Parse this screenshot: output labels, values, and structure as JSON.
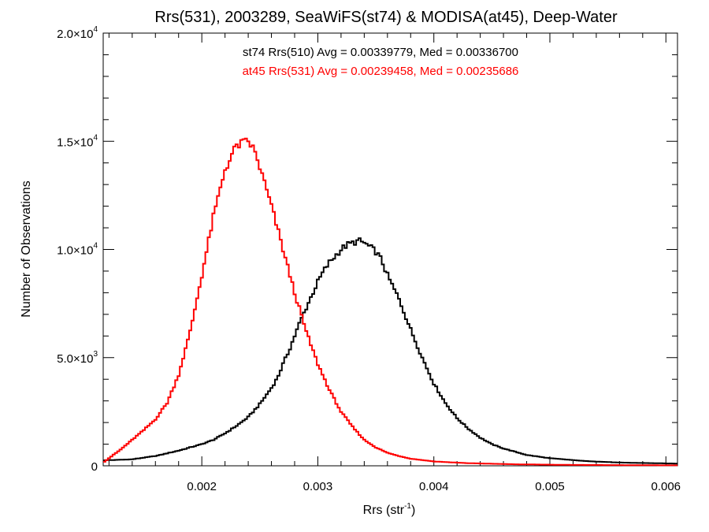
{
  "chart_data": {
    "type": "line",
    "title": "Rrs(531), 2003289, SeaWiFS(st74) & MODISA(at45), Deep-Water",
    "xlabel": "Rrs (str",
    "xlabel_sup": "-1",
    "xlabel_end": ")",
    "ylabel": "Number of Observations",
    "xlim": [
      0.00115,
      0.0061
    ],
    "ylim": [
      0,
      20000
    ],
    "x_ticks": [
      {
        "value": 0.002,
        "label": "0.002"
      },
      {
        "value": 0.003,
        "label": "0.003"
      },
      {
        "value": 0.004,
        "label": "0.004"
      },
      {
        "value": 0.005,
        "label": "0.005"
      },
      {
        "value": 0.006,
        "label": "0.006"
      }
    ],
    "y_ticks": [
      {
        "value": 0,
        "label": "0",
        "sup": ""
      },
      {
        "value": 5000,
        "label": "5.0×10",
        "sup": "3"
      },
      {
        "value": 10000,
        "label": "1.0×10",
        "sup": "4"
      },
      {
        "value": 15000,
        "label": "1.5×10",
        "sup": "4"
      },
      {
        "value": 20000,
        "label": "2.0×10",
        "sup": "4"
      }
    ],
    "grid": false,
    "series": [
      {
        "name": "st74 Rrs(510) Avg = 0.00339779, Med = 0.00336700",
        "color": "#000000",
        "points": [
          [
            0.00115,
            250
          ],
          [
            0.0014,
            300
          ],
          [
            0.0016,
            450
          ],
          [
            0.0018,
            700
          ],
          [
            0.002,
            1000
          ],
          [
            0.0021,
            1200
          ],
          [
            0.0022,
            1500
          ],
          [
            0.0023,
            1850
          ],
          [
            0.0024,
            2250
          ],
          [
            0.0025,
            2850
          ],
          [
            0.0026,
            3600
          ],
          [
            0.00265,
            4050
          ],
          [
            0.0027,
            4700
          ],
          [
            0.00275,
            5300
          ],
          [
            0.0028,
            6000
          ],
          [
            0.00285,
            6700
          ],
          [
            0.0029,
            7300
          ],
          [
            0.00295,
            7900
          ],
          [
            0.003,
            8500
          ],
          [
            0.00305,
            9000
          ],
          [
            0.0031,
            9400
          ],
          [
            0.00315,
            9700
          ],
          [
            0.0032,
            10000
          ],
          [
            0.00325,
            10200
          ],
          [
            0.0033,
            10300
          ],
          [
            0.00335,
            10400
          ],
          [
            0.0034,
            10300
          ],
          [
            0.00345,
            10100
          ],
          [
            0.0035,
            9900
          ],
          [
            0.00355,
            9500
          ],
          [
            0.0036,
            8800
          ],
          [
            0.0037,
            7700
          ],
          [
            0.0038,
            6300
          ],
          [
            0.0039,
            5000
          ],
          [
            0.004,
            3800
          ],
          [
            0.0041,
            2900
          ],
          [
            0.0042,
            2200
          ],
          [
            0.0043,
            1700
          ],
          [
            0.0044,
            1300
          ],
          [
            0.0045,
            1000
          ],
          [
            0.0046,
            800
          ],
          [
            0.0048,
            500
          ],
          [
            0.005,
            350
          ],
          [
            0.0053,
            220
          ],
          [
            0.0056,
            150
          ],
          [
            0.0061,
            100
          ]
        ]
      },
      {
        "name": "at45 Rrs(531) Avg = 0.00239458, Med = 0.00235686",
        "color": "#ff0000",
        "points": [
          [
            0.00115,
            150
          ],
          [
            0.0012,
            350
          ],
          [
            0.0013,
            750
          ],
          [
            0.0014,
            1200
          ],
          [
            0.0015,
            1650
          ],
          [
            0.0016,
            2150
          ],
          [
            0.0017,
            2900
          ],
          [
            0.0018,
            4200
          ],
          [
            0.0019,
            6200
          ],
          [
            0.002,
            8800
          ],
          [
            0.0021,
            11500
          ],
          [
            0.0022,
            13700
          ],
          [
            0.0023,
            14800
          ],
          [
            0.0024,
            15000
          ],
          [
            0.00245,
            14600
          ],
          [
            0.0025,
            13800
          ],
          [
            0.0026,
            12000
          ],
          [
            0.0027,
            10000
          ],
          [
            0.0028,
            8000
          ],
          [
            0.0029,
            6200
          ],
          [
            0.003,
            4700
          ],
          [
            0.0031,
            3500
          ],
          [
            0.0032,
            2500
          ],
          [
            0.0033,
            1800
          ],
          [
            0.0034,
            1200
          ],
          [
            0.0035,
            850
          ],
          [
            0.0036,
            600
          ],
          [
            0.0037,
            450
          ],
          [
            0.0038,
            330
          ],
          [
            0.004,
            200
          ],
          [
            0.0043,
            120
          ],
          [
            0.0047,
            70
          ],
          [
            0.0052,
            40
          ],
          [
            0.0061,
            20
          ]
        ]
      }
    ],
    "annotations": [
      {
        "text": "st74 Rrs(510) Avg = 0.00339779, Med = 0.00336700",
        "color": "#000000"
      },
      {
        "text": "at45 Rrs(531) Avg = 0.00239458, Med = 0.00235686",
        "color": "#ff0000"
      }
    ]
  }
}
